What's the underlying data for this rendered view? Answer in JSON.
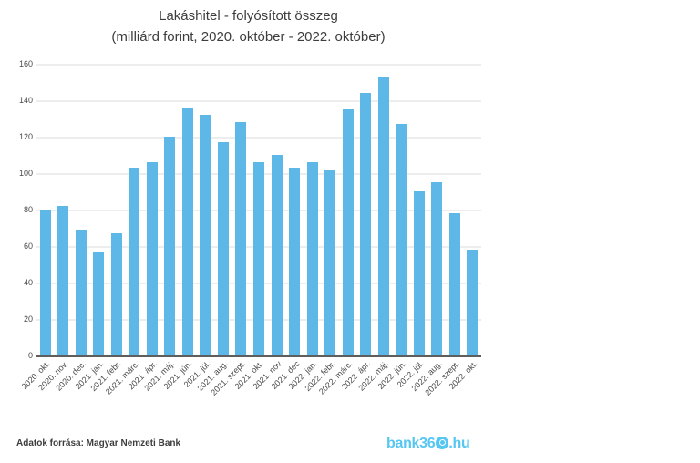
{
  "chart": {
    "title": "Lakáshitel - folyósított összeg",
    "subtitle": "(milliárd forint, 2020. október - 2022. október)"
  },
  "chart_data": {
    "type": "bar",
    "title": "Lakáshitel - folyósított összeg",
    "subtitle": "(milliárd forint, 2020. október - 2022. október)",
    "categories": [
      "2020. okt.",
      "2020. nov.",
      "2020. dec.",
      "2021. jan.",
      "2021. febr.",
      "2021. márc.",
      "2021. ápr.",
      "2021. máj.",
      "2021. jún.",
      "2021. júl.",
      "2021. aug.",
      "2021. szept.",
      "2021. okt.",
      "2021. nov",
      "2021. dec",
      "2022. jan.",
      "2022. febr.",
      "2022. márc.",
      "2022. ápr.",
      "2022. máj.",
      "2022. jún.",
      "2022. júl.",
      "2022. aug.",
      "2022. szept.",
      "2022. okt."
    ],
    "values": [
      80,
      82,
      69,
      57,
      67,
      103,
      106,
      120,
      136,
      132,
      117,
      128,
      106,
      110,
      103,
      106,
      102,
      135,
      144,
      153,
      127,
      90,
      95,
      78,
      58
    ],
    "xlabel": "",
    "ylabel": "",
    "ylim": [
      0,
      160
    ],
    "yticks": [
      0,
      20,
      40,
      60,
      80,
      100,
      120,
      140,
      160
    ],
    "grid": true,
    "legend": false,
    "bar_color": "#5db8e8"
  },
  "footer": {
    "source": "Adatok forrása: Magyar Nemzeti Bank",
    "logo": {
      "text": "bank360.hu",
      "prefix": "bank36",
      "suffix": ".hu",
      "color": "#56c6f2"
    }
  }
}
